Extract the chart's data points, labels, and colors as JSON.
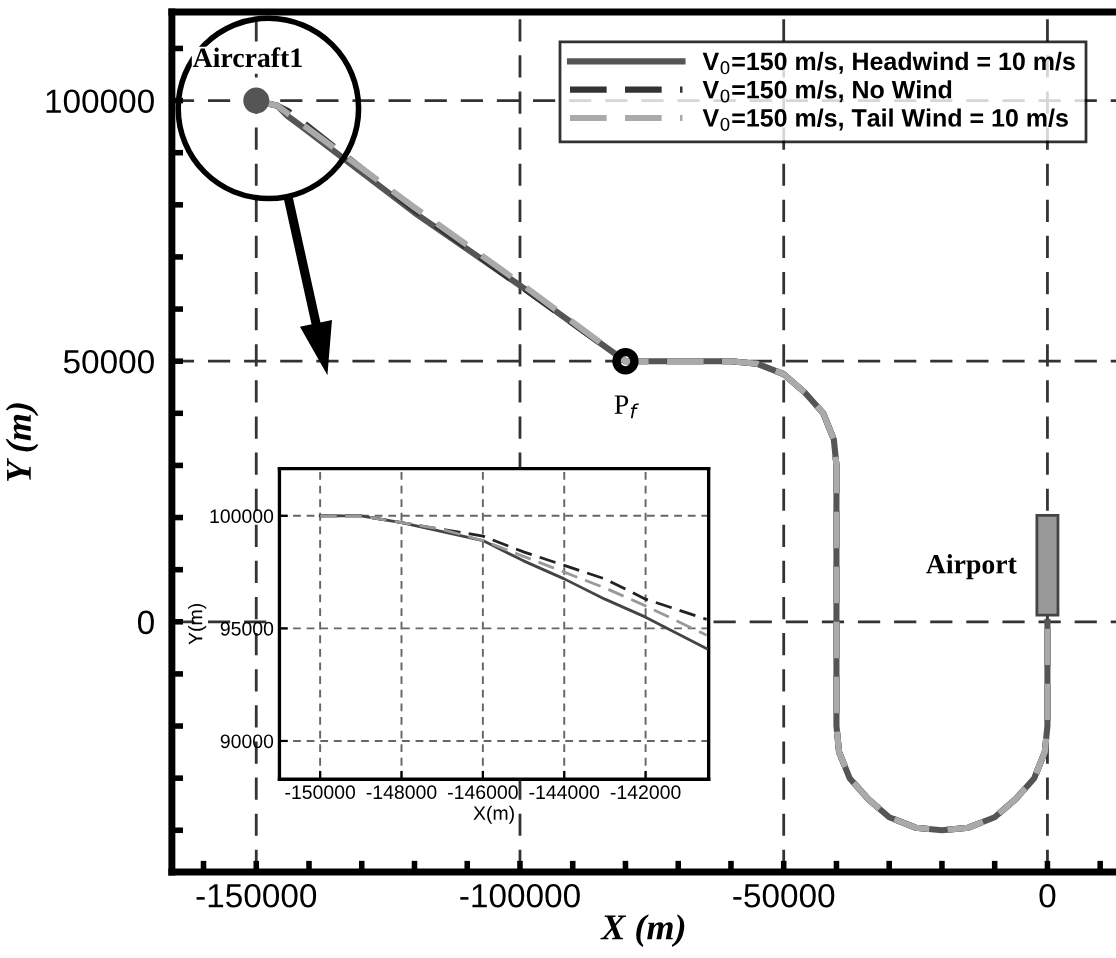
{
  "chart_data": [
    {
      "type": "line",
      "xlabel": "X (m)",
      "ylabel": "Y (m)",
      "x": [
        -150000,
        -148000,
        -146000,
        -144000,
        -142000,
        -120000,
        -100000,
        -80000,
        -60000,
        -55000,
        -50000,
        -46000,
        -42500,
        -40500,
        -40000,
        -40000,
        -39500,
        -37500,
        -34000,
        -30000,
        -25000,
        -20000,
        -15000,
        -10000,
        -6000,
        -2500,
        -500,
        0,
        0
      ],
      "series": [
        {
          "name": "V$_{0}$=150 m/s, Headwind = 10 m/s",
          "color": "#555555",
          "line_style": "solid",
          "values": [
            100000,
            99500,
            99000,
            97000,
            95500,
            78500,
            64500,
            50000,
            50000,
            49500,
            47500,
            44000,
            40000,
            35000,
            30000,
            -20000,
            -25000,
            -30000,
            -34000,
            -37500,
            -39500,
            -40000,
            -39500,
            -37500,
            -34000,
            -30000,
            -25000,
            -20000,
            0
          ]
        },
        {
          "name": "V$_{0}$=150 m/s, No Wind",
          "color": "#333333",
          "line_style": "dashed",
          "values": [
            100000,
            99500,
            99000,
            98000,
            96500,
            79000,
            64500,
            50000,
            50000,
            49500,
            47500,
            44000,
            40000,
            35000,
            30000,
            -20000,
            -25000,
            -30000,
            -34000,
            -37500,
            -39500,
            -40000,
            -39500,
            -37500,
            -34000,
            -30000,
            -25000,
            -20000,
            0
          ]
        },
        {
          "name": "V$_{0}$=150 m/s, Tail Wind = 10 m/s",
          "color": "#aaaaaa",
          "line_style": "dashed",
          "values": [
            100000,
            99500,
            99000,
            97500,
            96000,
            79500,
            65000,
            50000,
            50000,
            49500,
            47500,
            44000,
            40000,
            35000,
            30000,
            -20000,
            -25000,
            -30000,
            -34000,
            -37500,
            -39500,
            -40000,
            -39500,
            -37500,
            -34000,
            -30000,
            -25000,
            -20000,
            0
          ]
        },
        {
          "type": "scatter",
          "marker": "circle",
          "color": "#555555",
          "x": [
            -150000
          ],
          "values": [
            100000
          ]
        }
      ],
      "xlim": [
        -166000,
        13000
      ],
      "ylim": [
        -48000,
        117000
      ],
      "xticks": [
        {
          "value": -160000,
          "label": null
        },
        -150000,
        {
          "value": -140000,
          "label": null
        },
        {
          "value": -130000,
          "label": null
        },
        {
          "value": -120000,
          "label": null
        },
        {
          "value": -110000,
          "label": null
        },
        -100000,
        {
          "value": -90000,
          "label": null
        },
        {
          "value": -80000,
          "label": null
        },
        {
          "value": -70000,
          "label": null
        },
        {
          "value": -60000,
          "label": null
        },
        -50000,
        {
          "value": -40000,
          "label": null
        },
        {
          "value": -30000,
          "label": null
        },
        {
          "value": -20000,
          "label": null
        },
        {
          "value": -10000,
          "label": null
        },
        0,
        {
          "value": 10000,
          "label": null
        }
      ],
      "yticks": [
        {
          "value": -40000,
          "label": null
        },
        {
          "value": -30000,
          "label": null
        },
        {
          "value": -20000,
          "label": null
        },
        {
          "value": -10000,
          "label": null
        },
        0,
        {
          "value": 10000,
          "label": null
        },
        {
          "value": 20000,
          "label": null
        },
        {
          "value": 30000,
          "label": null
        },
        {
          "value": 40000,
          "label": null
        },
        50000,
        {
          "value": 60000,
          "label": null
        },
        {
          "value": 70000,
          "label": null
        },
        {
          "value": 80000,
          "label": null
        },
        {
          "value": 90000,
          "label": null
        },
        100000,
        {
          "value": 110000,
          "label": null
        }
      ],
      "grid": true,
      "legend": "top right",
      "annotations": [
        {
          "text": "Aircraft1",
          "x": -150000,
          "y": 100000
        },
        {
          "text": "P$_{f}$",
          "x": -80000,
          "y": 50000
        },
        "Airport"
      ]
    },
    {
      "type": "line",
      "xlabel": "X(m)",
      "ylabel": "Y(m)",
      "x": [
        -150000,
        -149000,
        -148000,
        -147000,
        -146000,
        -145000,
        -144000,
        -143000,
        -142000,
        -140500
      ],
      "series": [
        {
          "color": "#444444",
          "line_style": "solid",
          "values": [
            100000,
            100000,
            99700,
            99300,
            98900,
            98000,
            97200,
            96300,
            95500,
            94100
          ]
        },
        {
          "color": "#222222",
          "line_style": "dashed",
          "values": [
            100000,
            100000,
            99700,
            99400,
            99100,
            98400,
            97800,
            97200,
            96300,
            95400
          ]
        },
        {
          "color": "#999999",
          "line_style": "dashed",
          "values": [
            100000,
            100000,
            99700,
            99400,
            98900,
            98200,
            97500,
            96800,
            96000,
            94700
          ]
        }
      ],
      "xlim": [
        -151000,
        -140450
      ],
      "ylim": [
        88300,
        102100
      ],
      "xticks": [
        -150000,
        -148000,
        -146000,
        -144000,
        -142000
      ],
      "yticks": [
        90000,
        95000,
        100000
      ],
      "grid": true
    }
  ]
}
